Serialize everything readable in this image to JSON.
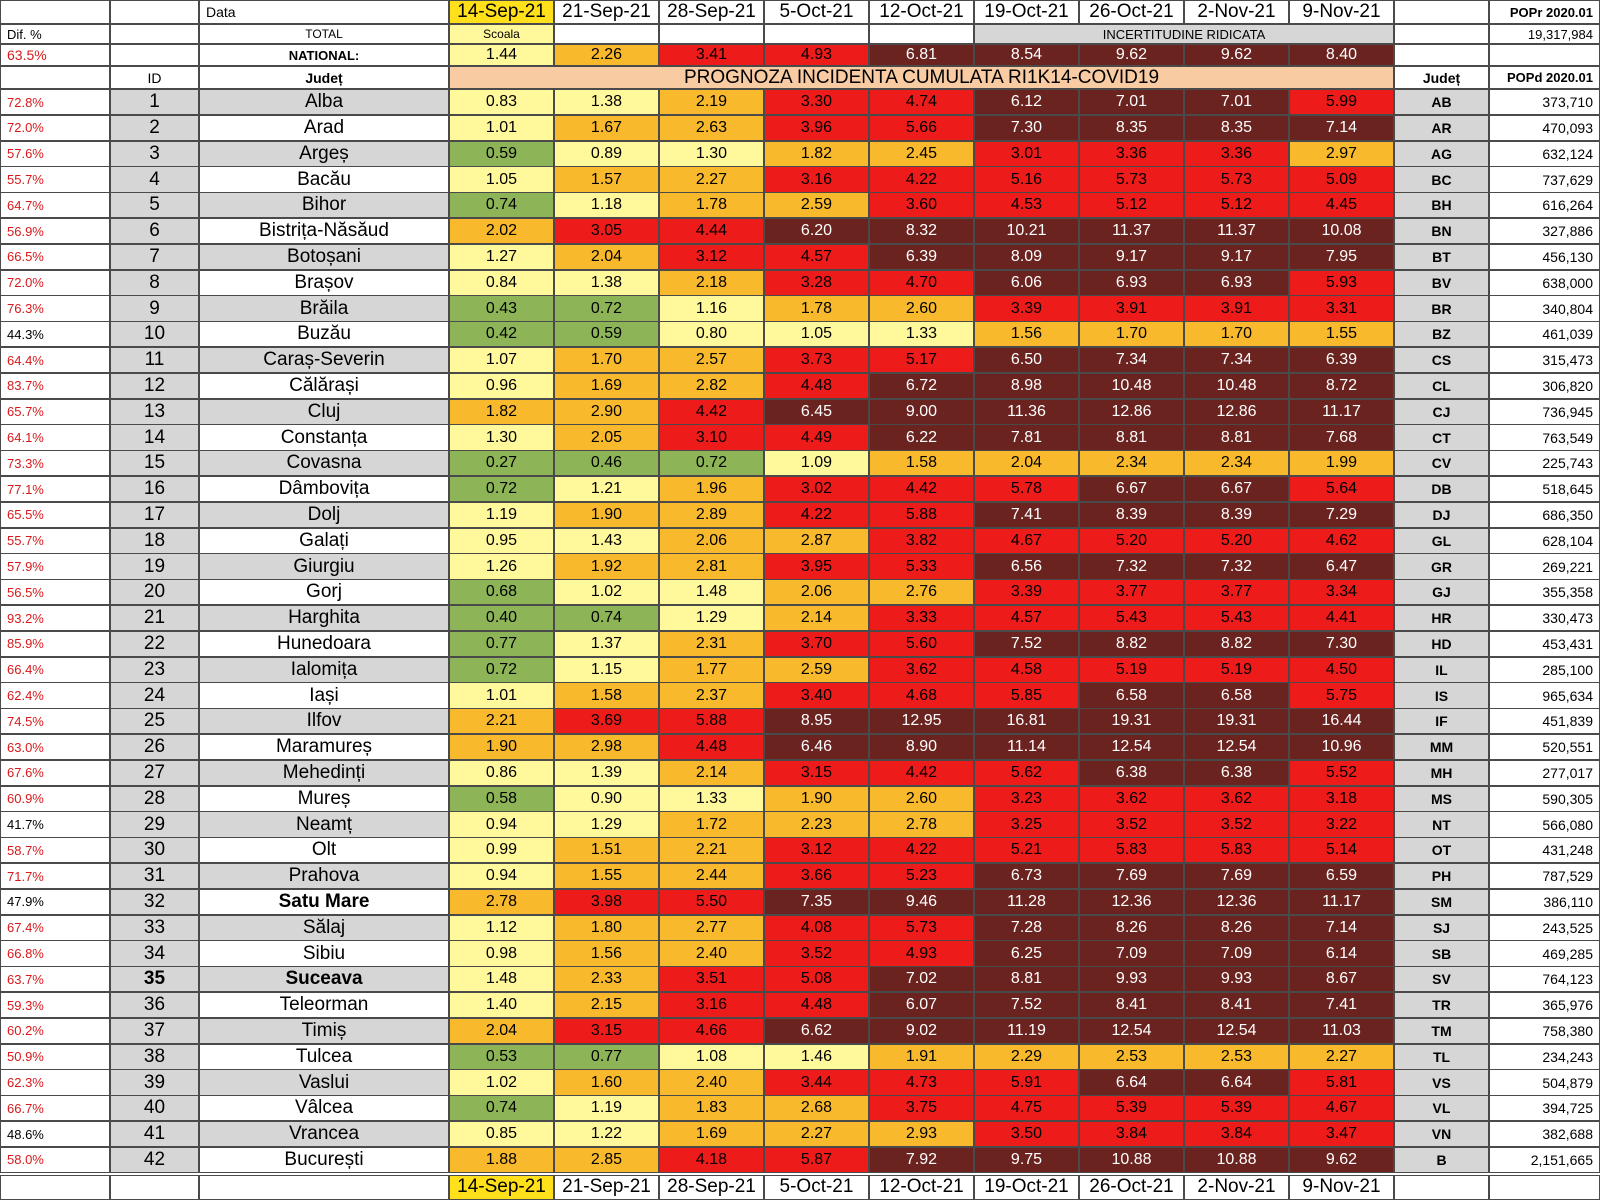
{
  "header": {
    "data_label": "Data",
    "total_label": "TOTAL",
    "national_label": "NATIONAL:",
    "dif_label": "Dif. %",
    "dif_national": "63.5%",
    "id_label": "ID",
    "judet_label": "Județ",
    "judet_label_right": "Județ",
    "scoala": "Scoala",
    "uncertainty": "INCERTITUDINE RIDICATA",
    "forecast_title": "PROGNOZA INCIDENTA CUMULATA RI1K14-COVID19",
    "popr_label": "POPr 2020.01",
    "popr_value": "19,317,984",
    "popd_label": "POPd 2020.01"
  },
  "colors": {
    "green": "#8db557",
    "lightgreen": "#9acd5e",
    "yellow": "#fff99b",
    "orange": "#f9b92c",
    "red": "#ee1b1b",
    "maroon": "#6b2320",
    "gray": "#d6d6d6",
    "peach": "#f8cba3",
    "dark_header": "#3a3a3a",
    "header_date_highlight": "#ffe01a"
  },
  "chart_data": {
    "type": "table",
    "title": "PROGNOZA INCIDENTA CUMULATA RI1K14-COVID19",
    "dates": [
      "14-Sep-21",
      "21-Sep-21",
      "28-Sep-21",
      "5-Oct-21",
      "12-Oct-21",
      "19-Oct-21",
      "26-Oct-21",
      "2-Nov-21",
      "9-Nov-21"
    ],
    "national": [
      "1.44",
      "2.26",
      "3.41",
      "4.93",
      "6.81",
      "8.54",
      "9.62",
      "9.62",
      "8.40"
    ],
    "rows": [
      {
        "dif": "72.8%",
        "id": "1",
        "name": "Alba",
        "code": "AB",
        "pop": "373,710",
        "values": [
          "0.83",
          "1.38",
          "2.19",
          "3.30",
          "4.74",
          "6.12",
          "7.01",
          "7.01",
          "5.99"
        ]
      },
      {
        "dif": "72.0%",
        "id": "2",
        "name": "Arad",
        "code": "AR",
        "pop": "470,093",
        "values": [
          "1.01",
          "1.67",
          "2.63",
          "3.96",
          "5.66",
          "7.30",
          "8.35",
          "8.35",
          "7.14"
        ]
      },
      {
        "dif": "57.6%",
        "id": "3",
        "name": "Argeș",
        "code": "AG",
        "pop": "632,124",
        "values": [
          "0.59",
          "0.89",
          "1.30",
          "1.82",
          "2.45",
          "3.01",
          "3.36",
          "3.36",
          "2.97"
        ]
      },
      {
        "dif": "55.7%",
        "id": "4",
        "name": "Bacău",
        "code": "BC",
        "pop": "737,629",
        "values": [
          "1.05",
          "1.57",
          "2.27",
          "3.16",
          "4.22",
          "5.16",
          "5.73",
          "5.73",
          "5.09"
        ]
      },
      {
        "dif": "64.7%",
        "id": "5",
        "name": "Bihor",
        "code": "BH",
        "pop": "616,264",
        "values": [
          "0.74",
          "1.18",
          "1.78",
          "2.59",
          "3.60",
          "4.53",
          "5.12",
          "5.12",
          "4.45"
        ]
      },
      {
        "dif": "56.9%",
        "id": "6",
        "name": "Bistrița-Năsăud",
        "code": "BN",
        "pop": "327,886",
        "values": [
          "2.02",
          "3.05",
          "4.44",
          "6.20",
          "8.32",
          "10.21",
          "11.37",
          "11.37",
          "10.08"
        ]
      },
      {
        "dif": "66.5%",
        "id": "7",
        "name": "Botoșani",
        "code": "BT",
        "pop": "456,130",
        "values": [
          "1.27",
          "2.04",
          "3.12",
          "4.57",
          "6.39",
          "8.09",
          "9.17",
          "9.17",
          "7.95"
        ]
      },
      {
        "dif": "72.0%",
        "id": "8",
        "name": "Brașov",
        "code": "BV",
        "pop": "638,000",
        "values": [
          "0.84",
          "1.38",
          "2.18",
          "3.28",
          "4.70",
          "6.06",
          "6.93",
          "6.93",
          "5.93"
        ]
      },
      {
        "dif": "76.3%",
        "id": "9",
        "name": "Brăila",
        "code": "BR",
        "pop": "340,804",
        "values": [
          "0.43",
          "0.72",
          "1.16",
          "1.78",
          "2.60",
          "3.39",
          "3.91",
          "3.91",
          "3.31"
        ]
      },
      {
        "dif": "44.3%",
        "id": "10",
        "name": "Buzău",
        "code": "BZ",
        "pop": "461,039",
        "values": [
          "0.42",
          "0.59",
          "0.80",
          "1.05",
          "1.33",
          "1.56",
          "1.70",
          "1.70",
          "1.55"
        ]
      },
      {
        "dif": "64.4%",
        "id": "11",
        "name": "Caraș-Severin",
        "code": "CS",
        "pop": "315,473",
        "values": [
          "1.07",
          "1.70",
          "2.57",
          "3.73",
          "5.17",
          "6.50",
          "7.34",
          "7.34",
          "6.39"
        ]
      },
      {
        "dif": "83.7%",
        "id": "12",
        "name": "Călărași",
        "code": "CL",
        "pop": "306,820",
        "values": [
          "0.96",
          "1.69",
          "2.82",
          "4.48",
          "6.72",
          "8.98",
          "10.48",
          "10.48",
          "8.72"
        ]
      },
      {
        "dif": "65.7%",
        "id": "13",
        "name": "Cluj",
        "code": "CJ",
        "pop": "736,945",
        "values": [
          "1.82",
          "2.90",
          "4.42",
          "6.45",
          "9.00",
          "11.36",
          "12.86",
          "12.86",
          "11.17"
        ]
      },
      {
        "dif": "64.1%",
        "id": "14",
        "name": "Constanța",
        "code": "CT",
        "pop": "763,549",
        "values": [
          "1.30",
          "2.05",
          "3.10",
          "4.49",
          "6.22",
          "7.81",
          "8.81",
          "8.81",
          "7.68"
        ]
      },
      {
        "dif": "73.3%",
        "id": "15",
        "name": "Covasna",
        "code": "CV",
        "pop": "225,743",
        "values": [
          "0.27",
          "0.46",
          "0.72",
          "1.09",
          "1.58",
          "2.04",
          "2.34",
          "2.34",
          "1.99"
        ]
      },
      {
        "dif": "77.1%",
        "id": "16",
        "name": "Dâmbovița",
        "code": "DB",
        "pop": "518,645",
        "values": [
          "0.72",
          "1.21",
          "1.96",
          "3.02",
          "4.42",
          "5.78",
          "6.67",
          "6.67",
          "5.64"
        ]
      },
      {
        "dif": "65.5%",
        "id": "17",
        "name": "Dolj",
        "code": "DJ",
        "pop": "686,350",
        "values": [
          "1.19",
          "1.90",
          "2.89",
          "4.22",
          "5.88",
          "7.41",
          "8.39",
          "8.39",
          "7.29"
        ]
      },
      {
        "dif": "55.7%",
        "id": "18",
        "name": "Galați",
        "code": "GL",
        "pop": "628,104",
        "values": [
          "0.95",
          "1.43",
          "2.06",
          "2.87",
          "3.82",
          "4.67",
          "5.20",
          "5.20",
          "4.62"
        ]
      },
      {
        "dif": "57.9%",
        "id": "19",
        "name": "Giurgiu",
        "code": "GR",
        "pop": "269,221",
        "values": [
          "1.26",
          "1.92",
          "2.81",
          "3.95",
          "5.33",
          "6.56",
          "7.32",
          "7.32",
          "6.47"
        ]
      },
      {
        "dif": "56.5%",
        "id": "20",
        "name": "Gorj",
        "code": "GJ",
        "pop": "355,358",
        "values": [
          "0.68",
          "1.02",
          "1.48",
          "2.06",
          "2.76",
          "3.39",
          "3.77",
          "3.77",
          "3.34"
        ]
      },
      {
        "dif": "93.2%",
        "id": "21",
        "name": "Harghita",
        "code": "HR",
        "pop": "330,473",
        "values": [
          "0.40",
          "0.74",
          "1.29",
          "2.14",
          "3.33",
          "4.57",
          "5.43",
          "5.43",
          "4.41"
        ]
      },
      {
        "dif": "85.9%",
        "id": "22",
        "name": "Hunedoara",
        "code": "HD",
        "pop": "453,431",
        "values": [
          "0.77",
          "1.37",
          "2.31",
          "3.70",
          "5.60",
          "7.52",
          "8.82",
          "8.82",
          "7.30"
        ]
      },
      {
        "dif": "66.4%",
        "id": "23",
        "name": "Ialomița",
        "code": "IL",
        "pop": "285,100",
        "values": [
          "0.72",
          "1.15",
          "1.77",
          "2.59",
          "3.62",
          "4.58",
          "5.19",
          "5.19",
          "4.50"
        ]
      },
      {
        "dif": "62.4%",
        "id": "24",
        "name": "Iași",
        "code": "IS",
        "pop": "965,634",
        "values": [
          "1.01",
          "1.58",
          "2.37",
          "3.40",
          "4.68",
          "5.85",
          "6.58",
          "6.58",
          "5.75"
        ]
      },
      {
        "dif": "74.5%",
        "id": "25",
        "name": "Ilfov",
        "code": "IF",
        "pop": "451,839",
        "values": [
          "2.21",
          "3.69",
          "5.88",
          "8.95",
          "12.95",
          "16.81",
          "19.31",
          "19.31",
          "16.44"
        ]
      },
      {
        "dif": "63.0%",
        "id": "26",
        "name": "Maramureș",
        "code": "MM",
        "pop": "520,551",
        "values": [
          "1.90",
          "2.98",
          "4.48",
          "6.46",
          "8.90",
          "11.14",
          "12.54",
          "12.54",
          "10.96"
        ]
      },
      {
        "dif": "67.6%",
        "id": "27",
        "name": "Mehedinți",
        "code": "MH",
        "pop": "277,017",
        "values": [
          "0.86",
          "1.39",
          "2.14",
          "3.15",
          "4.42",
          "5.62",
          "6.38",
          "6.38",
          "5.52"
        ]
      },
      {
        "dif": "60.9%",
        "id": "28",
        "name": "Mureș",
        "code": "MS",
        "pop": "590,305",
        "values": [
          "0.58",
          "0.90",
          "1.33",
          "1.90",
          "2.60",
          "3.23",
          "3.62",
          "3.62",
          "3.18"
        ]
      },
      {
        "dif": "41.7%",
        "id": "29",
        "name": "Neamț",
        "code": "NT",
        "pop": "566,080",
        "values": [
          "0.94",
          "1.29",
          "1.72",
          "2.23",
          "2.78",
          "3.25",
          "3.52",
          "3.52",
          "3.22"
        ]
      },
      {
        "dif": "58.7%",
        "id": "30",
        "name": "Olt",
        "code": "OT",
        "pop": "431,248",
        "values": [
          "0.99",
          "1.51",
          "2.21",
          "3.12",
          "4.22",
          "5.21",
          "5.83",
          "5.83",
          "5.14"
        ]
      },
      {
        "dif": "71.7%",
        "id": "31",
        "name": "Prahova",
        "code": "PH",
        "pop": "787,529",
        "values": [
          "0.94",
          "1.55",
          "2.44",
          "3.66",
          "5.23",
          "6.73",
          "7.69",
          "7.69",
          "6.59"
        ]
      },
      {
        "dif": "47.9%",
        "id": "32",
        "name": "Satu Mare",
        "code": "SM",
        "pop": "386,110",
        "values": [
          "2.78",
          "3.98",
          "5.50",
          "7.35",
          "9.46",
          "11.28",
          "12.36",
          "12.36",
          "11.17"
        ]
      },
      {
        "dif": "67.4%",
        "id": "33",
        "name": "Sălaj",
        "code": "SJ",
        "pop": "243,525",
        "values": [
          "1.12",
          "1.80",
          "2.77",
          "4.08",
          "5.73",
          "7.28",
          "8.26",
          "8.26",
          "7.14"
        ]
      },
      {
        "dif": "66.8%",
        "id": "34",
        "name": "Sibiu",
        "code": "SB",
        "pop": "469,285",
        "values": [
          "0.98",
          "1.56",
          "2.40",
          "3.52",
          "4.93",
          "6.25",
          "7.09",
          "7.09",
          "6.14"
        ]
      },
      {
        "dif": "63.7%",
        "id": "35",
        "name": "Suceava",
        "code": "SV",
        "pop": "764,123",
        "values": [
          "1.48",
          "2.33",
          "3.51",
          "5.08",
          "7.02",
          "8.81",
          "9.93",
          "9.93",
          "8.67"
        ]
      },
      {
        "dif": "59.3%",
        "id": "36",
        "name": "Teleorman",
        "code": "TR",
        "pop": "365,976",
        "values": [
          "1.40",
          "2.15",
          "3.16",
          "4.48",
          "6.07",
          "7.52",
          "8.41",
          "8.41",
          "7.41"
        ]
      },
      {
        "dif": "60.2%",
        "id": "37",
        "name": "Timiș",
        "code": "TM",
        "pop": "758,380",
        "values": [
          "2.04",
          "3.15",
          "4.66",
          "6.62",
          "9.02",
          "11.19",
          "12.54",
          "12.54",
          "11.03"
        ]
      },
      {
        "dif": "50.9%",
        "id": "38",
        "name": "Tulcea",
        "code": "TL",
        "pop": "234,243",
        "values": [
          "0.53",
          "0.77",
          "1.08",
          "1.46",
          "1.91",
          "2.29",
          "2.53",
          "2.53",
          "2.27"
        ]
      },
      {
        "dif": "62.3%",
        "id": "39",
        "name": "Vaslui",
        "code": "VS",
        "pop": "504,879",
        "values": [
          "1.02",
          "1.60",
          "2.40",
          "3.44",
          "4.73",
          "5.91",
          "6.64",
          "6.64",
          "5.81"
        ]
      },
      {
        "dif": "66.7%",
        "id": "40",
        "name": "Vâlcea",
        "code": "VL",
        "pop": "394,725",
        "values": [
          "0.74",
          "1.19",
          "1.83",
          "2.68",
          "3.75",
          "4.75",
          "5.39",
          "5.39",
          "4.67"
        ]
      },
      {
        "dif": "48.6%",
        "id": "41",
        "name": "Vrancea",
        "code": "VN",
        "pop": "382,688",
        "values": [
          "0.85",
          "1.22",
          "1.69",
          "2.27",
          "2.93",
          "3.50",
          "3.84",
          "3.84",
          "3.47"
        ]
      },
      {
        "dif": "58.0%",
        "id": "42",
        "name": "București",
        "code": "B",
        "pop": "2,151,665",
        "values": [
          "1.88",
          "2.85",
          "4.18",
          "5.87",
          "7.92",
          "9.75",
          "10.88",
          "10.88",
          "9.62"
        ]
      }
    ]
  }
}
